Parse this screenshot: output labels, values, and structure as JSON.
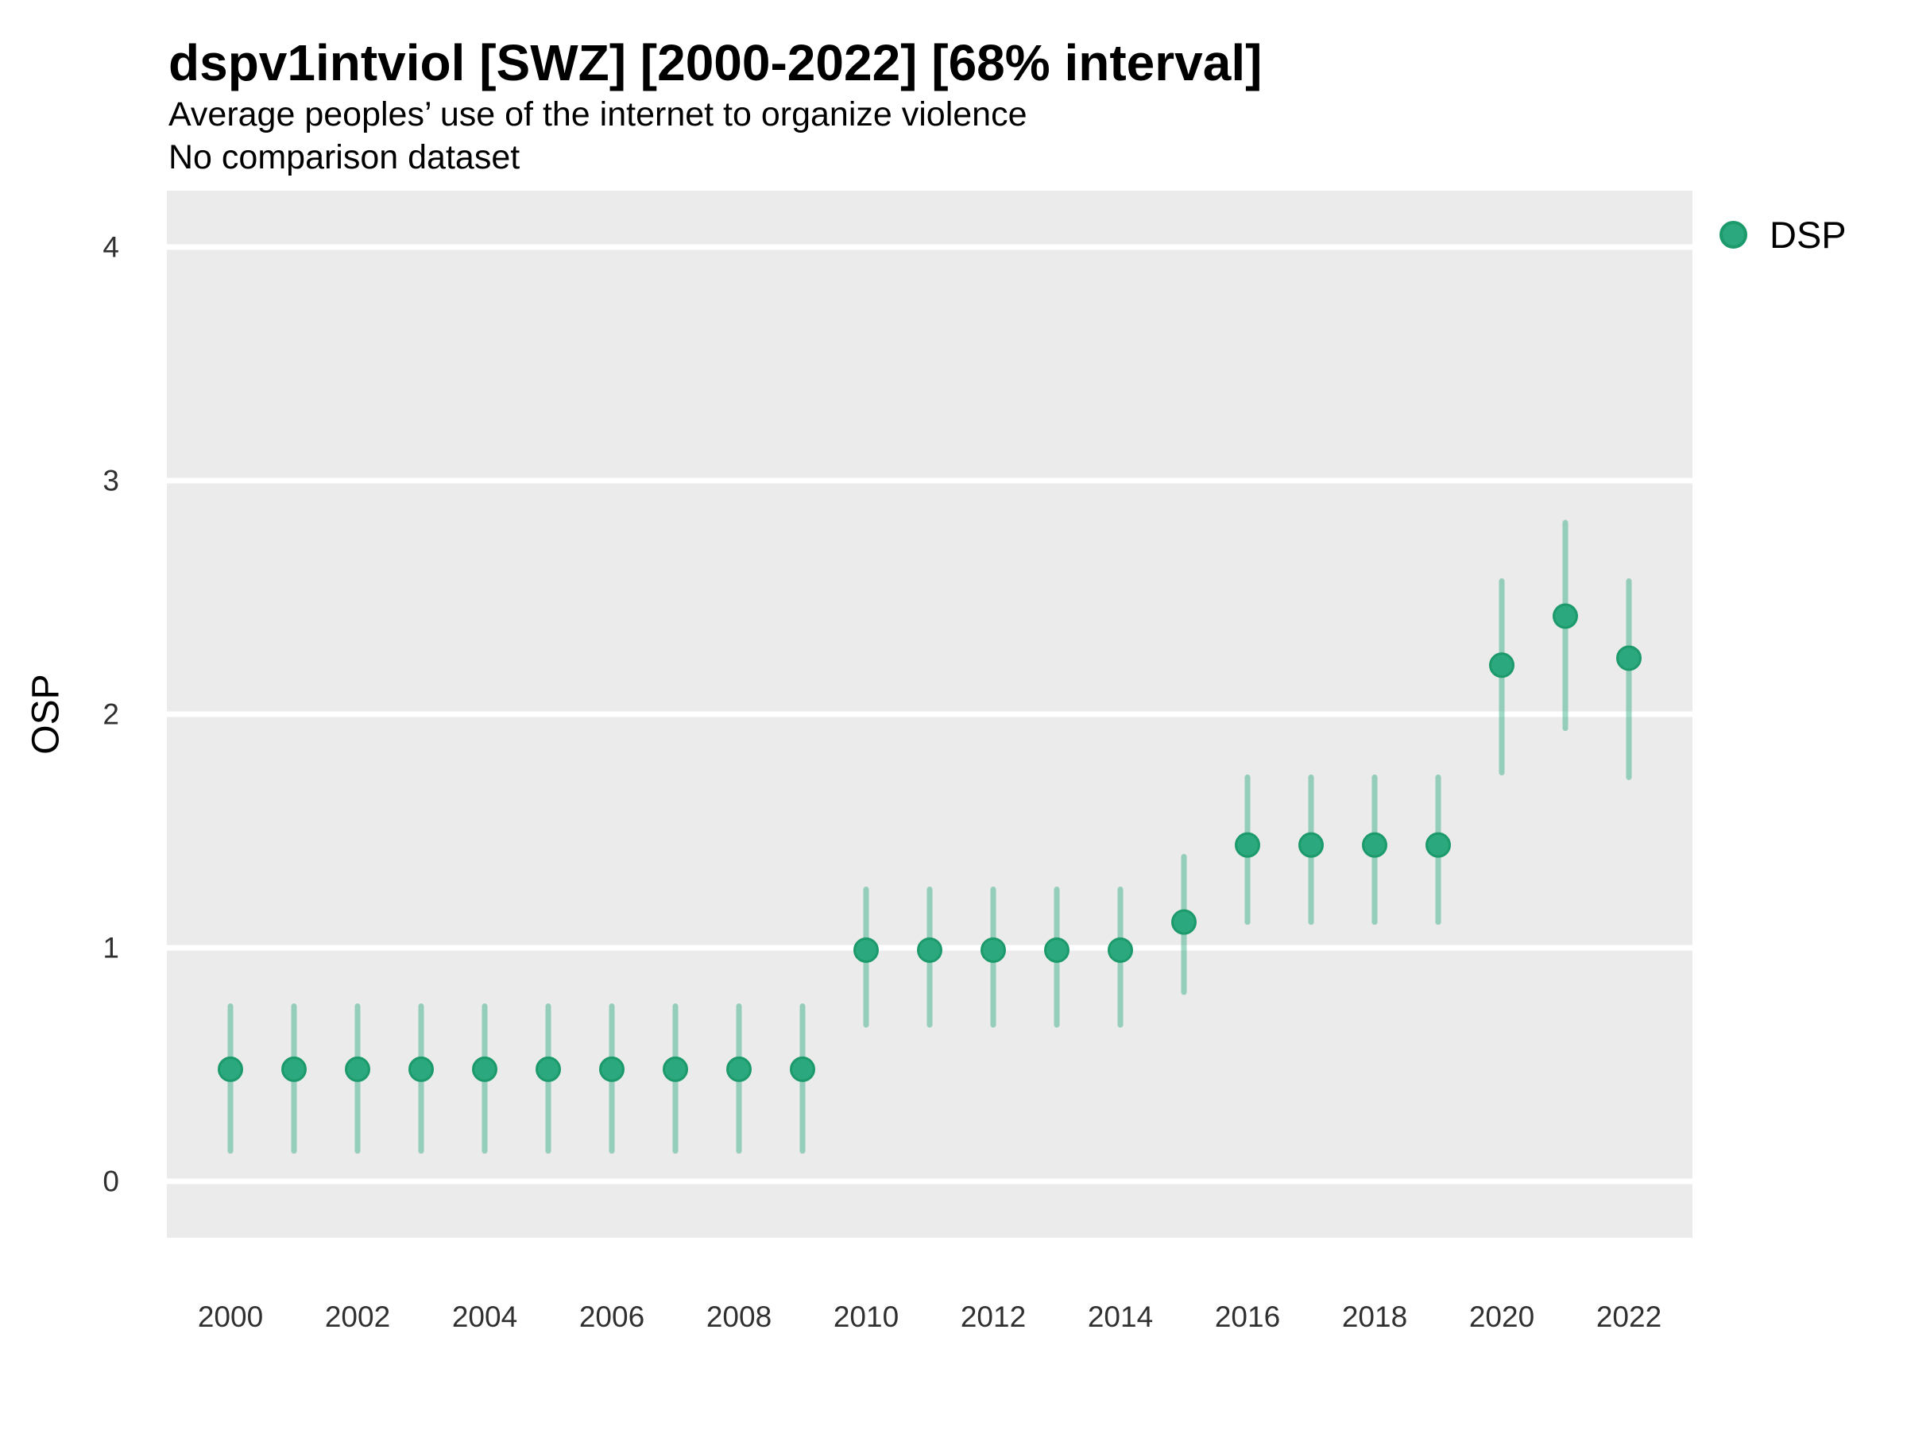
{
  "colors": {
    "figure_bg": "#FFFFFF",
    "panel_bg": "#EBEBEB",
    "grid": "#FFFFFF",
    "point_fill": "#2BA87D",
    "point_stroke": "#1C9A6C",
    "interval": "rgba(43,168,125,0.45)",
    "title_text": "#000000",
    "tick_text": "#303030"
  },
  "chart_data": {
    "type": "scatter",
    "title": "dspv1intviol [SWZ] [2000-2022] [68% interval]",
    "subtitle": "Average peoples’ use of the internet to organize violence",
    "note": "No comparison dataset",
    "xlabel": "",
    "ylabel": "OSP",
    "interval_label": "68% interval",
    "grid": "horizontal-major-only",
    "legend": {
      "position": "right",
      "entries": [
        "DSP"
      ]
    },
    "xlim": [
      1999,
      2023
    ],
    "ylim": [
      0,
      4
    ],
    "yticks": [
      0,
      1,
      2,
      3,
      4
    ],
    "xticks": [
      2000,
      2002,
      2004,
      2006,
      2008,
      2010,
      2012,
      2014,
      2016,
      2018,
      2020,
      2022
    ],
    "series": [
      {
        "name": "DSP",
        "x": [
          2000,
          2001,
          2002,
          2003,
          2004,
          2005,
          2006,
          2007,
          2008,
          2009,
          2010,
          2011,
          2012,
          2013,
          2014,
          2015,
          2016,
          2017,
          2018,
          2019,
          2020,
          2021,
          2022
        ],
        "est": [
          0.48,
          0.48,
          0.48,
          0.48,
          0.48,
          0.48,
          0.48,
          0.48,
          0.48,
          0.48,
          0.99,
          0.99,
          0.99,
          0.99,
          0.99,
          1.11,
          1.44,
          1.44,
          1.44,
          1.44,
          2.21,
          2.42,
          2.24
        ],
        "lo": [
          0.13,
          0.13,
          0.13,
          0.13,
          0.13,
          0.13,
          0.13,
          0.13,
          0.13,
          0.13,
          0.67,
          0.67,
          0.67,
          0.67,
          0.67,
          0.81,
          1.11,
          1.11,
          1.11,
          1.11,
          1.75,
          1.94,
          1.73
        ],
        "hi": [
          0.75,
          0.75,
          0.75,
          0.75,
          0.75,
          0.75,
          0.75,
          0.75,
          0.75,
          0.75,
          1.25,
          1.25,
          1.25,
          1.25,
          1.25,
          1.39,
          1.73,
          1.73,
          1.73,
          1.73,
          2.57,
          2.82,
          2.57
        ]
      }
    ]
  }
}
